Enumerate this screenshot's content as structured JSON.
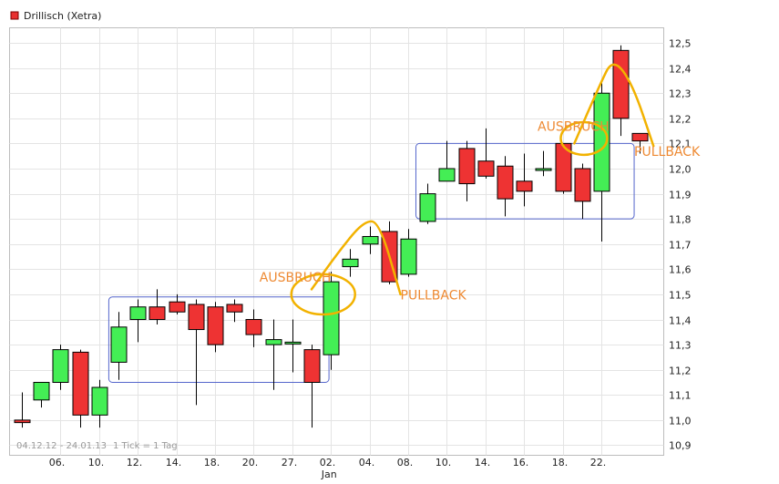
{
  "legend": {
    "label": "Drillisch (Xetra)",
    "color": "#e83030"
  },
  "footer": {
    "range": "04.12.12 - 24.01.13",
    "tick": "1 Tick = 1 Tag"
  },
  "colors": {
    "up": "#44ee55",
    "down": "#ee3333",
    "zone": "#5566cc",
    "curve": "#f2b200",
    "annotation": "#ee8a33"
  },
  "chart_data": {
    "type": "candlestick",
    "title": "Drillisch (Xetra)",
    "y_ticks": [
      10.9,
      11.0,
      11.1,
      11.2,
      11.3,
      11.4,
      11.5,
      11.6,
      11.7,
      11.8,
      11.9,
      12.0,
      12.1,
      12.2,
      12.3,
      12.4,
      12.5
    ],
    "y_tick_labels": [
      "10,9",
      "11,0",
      "11,1",
      "11,2",
      "11,3",
      "11,4",
      "11,5",
      "11,6",
      "11,7",
      "11,8",
      "11,9",
      "12,0",
      "12,1",
      "12,2",
      "12,3",
      "12,4",
      "12,5"
    ],
    "ylim": [
      10.86,
      12.56
    ],
    "x_tick_labels": [
      {
        "label": "06.",
        "at": 2
      },
      {
        "label": "10.",
        "at": 4
      },
      {
        "label": "12.",
        "at": 6
      },
      {
        "label": "14.",
        "at": 8
      },
      {
        "label": "18.",
        "at": 10
      },
      {
        "label": "20.",
        "at": 12
      },
      {
        "label": "27.",
        "at": 14
      },
      {
        "label": "02.",
        "at": 16
      },
      {
        "label": "04.",
        "at": 18
      },
      {
        "label": "08.",
        "at": 20
      },
      {
        "label": "10.",
        "at": 22
      },
      {
        "label": "14.",
        "at": 24
      },
      {
        "label": "16.",
        "at": 26
      },
      {
        "label": "18.",
        "at": 28
      },
      {
        "label": "22.",
        "at": 30
      }
    ],
    "x_sub_label": {
      "label": "Jan",
      "at": 16
    },
    "candles": [
      {
        "o": 11.0,
        "h": 11.11,
        "l": 10.97,
        "c": 10.99
      },
      {
        "o": 11.08,
        "h": 11.15,
        "l": 11.05,
        "c": 11.15
      },
      {
        "o": 11.15,
        "h": 11.3,
        "l": 11.12,
        "c": 11.28
      },
      {
        "o": 11.27,
        "h": 11.28,
        "l": 10.97,
        "c": 11.02
      },
      {
        "o": 11.02,
        "h": 11.16,
        "l": 10.97,
        "c": 11.13
      },
      {
        "o": 11.23,
        "h": 11.43,
        "l": 11.16,
        "c": 11.37
      },
      {
        "o": 11.4,
        "h": 11.48,
        "l": 11.31,
        "c": 11.45
      },
      {
        "o": 11.45,
        "h": 11.52,
        "l": 11.38,
        "c": 11.4
      },
      {
        "o": 11.47,
        "h": 11.5,
        "l": 11.42,
        "c": 11.43
      },
      {
        "o": 11.46,
        "h": 11.48,
        "l": 11.06,
        "c": 11.36
      },
      {
        "o": 11.45,
        "h": 11.47,
        "l": 11.27,
        "c": 11.3
      },
      {
        "o": 11.46,
        "h": 11.48,
        "l": 11.39,
        "c": 11.43
      },
      {
        "o": 11.4,
        "h": 11.44,
        "l": 11.29,
        "c": 11.34
      },
      {
        "o": 11.3,
        "h": 11.4,
        "l": 11.12,
        "c": 11.32
      },
      {
        "o": 11.31,
        "h": 11.4,
        "l": 11.19,
        "c": 11.31
      },
      {
        "o": 11.28,
        "h": 11.3,
        "l": 10.97,
        "c": 11.15
      },
      {
        "o": 11.26,
        "h": 11.59,
        "l": 11.2,
        "c": 11.55
      },
      {
        "o": 11.61,
        "h": 11.68,
        "l": 11.57,
        "c": 11.64
      },
      {
        "o": 11.7,
        "h": 11.77,
        "l": 11.66,
        "c": 11.73
      },
      {
        "o": 11.75,
        "h": 11.79,
        "l": 11.54,
        "c": 11.55
      },
      {
        "o": 11.58,
        "h": 11.76,
        "l": 11.57,
        "c": 11.72
      },
      {
        "o": 11.79,
        "h": 11.94,
        "l": 11.78,
        "c": 11.9
      },
      {
        "o": 11.95,
        "h": 12.11,
        "l": 11.95,
        "c": 12.0
      },
      {
        "o": 12.08,
        "h": 12.11,
        "l": 11.87,
        "c": 11.94
      },
      {
        "o": 12.03,
        "h": 12.16,
        "l": 11.96,
        "c": 11.97
      },
      {
        "o": 12.01,
        "h": 12.05,
        "l": 11.81,
        "c": 11.88
      },
      {
        "o": 11.95,
        "h": 12.06,
        "l": 11.85,
        "c": 11.91
      },
      {
        "o": 12.0,
        "h": 12.07,
        "l": 11.97,
        "c": 12.0
      },
      {
        "o": 12.1,
        "h": 12.1,
        "l": 11.9,
        "c": 11.91
      },
      {
        "o": 12.0,
        "h": 12.02,
        "l": 11.8,
        "c": 11.87
      },
      {
        "o": 11.91,
        "h": 12.34,
        "l": 11.71,
        "c": 12.3
      },
      {
        "o": 12.47,
        "h": 12.49,
        "l": 12.13,
        "c": 12.2
      },
      {
        "o": 12.14,
        "h": 12.14,
        "l": 12.06,
        "c": 12.11
      }
    ],
    "zones": [
      {
        "x0": 4.5,
        "x1": 15.9,
        "y_top": 11.49,
        "y_bottom": 11.15
      },
      {
        "x0": 20.4,
        "x1": 31.7,
        "y_top": 12.1,
        "y_bottom": 11.8
      }
    ],
    "annotations": [
      {
        "text": "AUSBRUCH",
        "x": 12.3,
        "y": 11.55
      },
      {
        "text": "PULLBACK",
        "x": 19.6,
        "y": 11.48
      },
      {
        "text": "AUSBRUCH",
        "x": 26.7,
        "y": 12.15
      },
      {
        "text": "PULLBACK",
        "x": 31.7,
        "y": 12.05
      }
    ],
    "ellipses": [
      {
        "cx": 15.6,
        "cy": 11.5,
        "rx": 1.65,
        "ry": 0.08
      },
      {
        "cx": 29.1,
        "cy": 12.12,
        "rx": 1.2,
        "ry": 0.065
      }
    ],
    "curves": [
      [
        [
          15.0,
          11.52
        ],
        [
          16.5,
          11.68
        ],
        [
          17.7,
          11.79
        ],
        [
          18.5,
          11.79
        ],
        [
          19.6,
          11.5
        ]
      ],
      [
        [
          28.6,
          12.1
        ],
        [
          29.9,
          12.33
        ],
        [
          30.6,
          12.44
        ],
        [
          31.6,
          12.34
        ],
        [
          32.7,
          12.09
        ]
      ]
    ]
  }
}
